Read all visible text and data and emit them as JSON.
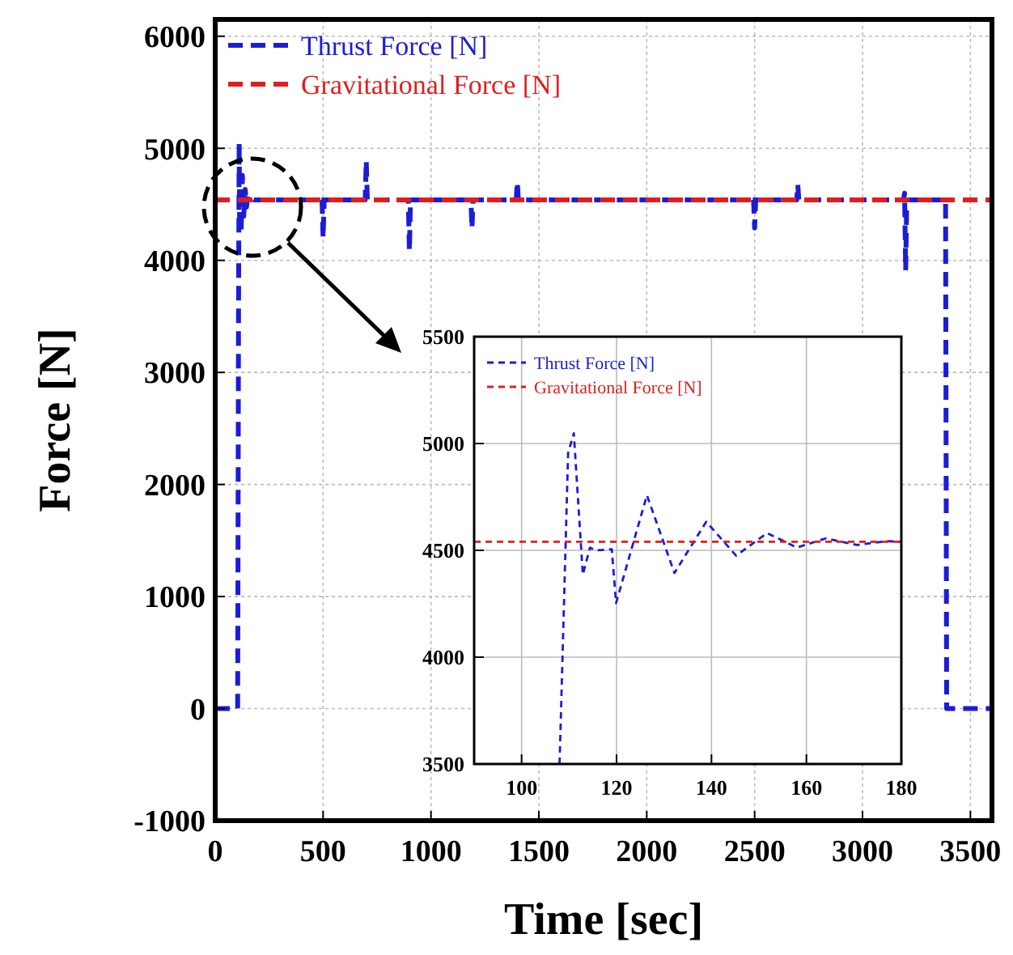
{
  "chart_data": [
    {
      "type": "line",
      "xlabel": "Time [sec]",
      "ylabel": "Force [N]",
      "xlim": [
        0,
        3600
      ],
      "ylim": [
        -1000,
        6150
      ],
      "xticks": [
        0,
        500,
        1000,
        1500,
        2000,
        2500,
        3000,
        3500
      ],
      "yticks": [
        -1000,
        0,
        1000,
        2000,
        3000,
        4000,
        5000,
        6000
      ],
      "grid": true,
      "legend": "top left",
      "line_style": "dashed",
      "series": [
        {
          "name": "Thrust Force [N]",
          "color": "#1c1cd8",
          "x": [
            0,
            104,
            108,
            111,
            113,
            120,
            126,
            132,
            139,
            145,
            152,
            180,
            495,
            500,
            505,
            695,
            700,
            705,
            895,
            900,
            905,
            1185,
            1190,
            1195,
            1395,
            1400,
            1405,
            2495,
            2500,
            2505,
            2695,
            2700,
            2705,
            3190,
            3195,
            3200,
            3205,
            3385,
            3390,
            3600
          ],
          "values": [
            0,
            0,
            3500,
            5048,
            4386,
            4253,
            4758,
            4394,
            4634,
            4475,
            4581,
            4540,
            4540,
            4200,
            4540,
            4540,
            4890,
            4540,
            4540,
            4085,
            4540,
            4540,
            4285,
            4540,
            4540,
            4700,
            4540,
            4540,
            4290,
            4540,
            4540,
            4675,
            4540,
            4540,
            4600,
            3910,
            4540,
            4540,
            0,
            0
          ]
        },
        {
          "name": "Gravitational Force [N]",
          "color": "#e01e1e",
          "x": [
            0,
            3600
          ],
          "values": [
            4540,
            4540
          ]
        }
      ]
    },
    {
      "type": "line",
      "xlim": [
        90,
        180
      ],
      "ylim": [
        3500,
        5500
      ],
      "xticks": [
        100,
        120,
        140,
        160,
        180
      ],
      "yticks": [
        3500,
        4000,
        4500,
        5000,
        5500
      ],
      "grid": true,
      "legend": "top left",
      "line_style": "dashed",
      "series": [
        {
          "name": "Thrust Force [N]",
          "color": "#1c1cd8",
          "x": [
            108,
            109.8,
            111,
            112.9,
            114.4,
            115.5,
            119,
            119.9,
            126.4,
            132.2,
            138.9,
            145.2,
            151.7,
            158,
            164.1,
            170.7,
            177,
            180
          ],
          "values": [
            3500,
            4955,
            5048,
            4386,
            4513,
            4500,
            4505,
            4253,
            4758,
            4394,
            4634,
            4475,
            4581,
            4513,
            4556,
            4525,
            4543,
            4540
          ]
        },
        {
          "name": "Gravitational Force [N]",
          "color": "#e01e1e",
          "x": [
            90,
            180
          ],
          "values": [
            4540,
            4540
          ]
        }
      ]
    }
  ]
}
